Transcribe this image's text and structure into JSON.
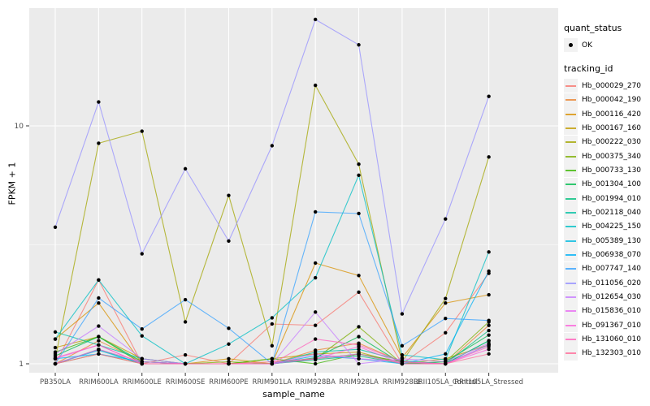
{
  "figure": {
    "y_axis_title": "FPKM + 1",
    "x_axis_title": "sample_name",
    "legend": {
      "quant_status_title": "quant_status",
      "quant_status_items": [
        {
          "label": "OK"
        }
      ],
      "tracking_id_title": "tracking_id"
    }
  },
  "chart_data": {
    "type": "line",
    "title": "",
    "xlabel": "sample_name",
    "ylabel": "FPKM + 1",
    "y_scale": "log10",
    "y_tick_values": [
      1,
      10
    ],
    "y_tick_labels": [
      "1",
      "10"
    ],
    "y_minor_tick_values": [
      3.162
    ],
    "ylim": [
      0.92,
      31
    ],
    "grid": true,
    "legend_position": "right",
    "panel_color": "#EBEBEB",
    "grid_color": "#FFFFFF",
    "point_color": "#000000",
    "tick_label_color": "#4D4D4D",
    "categories": [
      "PB350LA",
      "RRIM600LA",
      "RRIM600LE",
      "RRIM600SE",
      "RRIM600PE",
      "RRIM901LA",
      "RRIM928BA",
      "RRIM928LA",
      "RRIM928LE",
      "RRII105LA_Control",
      "RRII105LA_Stressed"
    ],
    "series": [
      {
        "name": "Hb_000029_270",
        "color": "#F8766D",
        "values": [
          1.0,
          2.25,
          1.0,
          1.09,
          1.0,
          1.47,
          1.45,
          2.0,
          1.0,
          1.35,
          2.4
        ]
      },
      {
        "name": "Hb_000042_190",
        "color": "#EA8331",
        "values": [
          1.0,
          1.25,
          1.02,
          1.0,
          1.0,
          1.0,
          1.14,
          1.22,
          1.02,
          1.0,
          1.45
        ]
      },
      {
        "name": "Hb_000116_420",
        "color": "#D89000",
        "values": [
          1.27,
          1.8,
          1.0,
          1.0,
          1.05,
          1.0,
          2.65,
          2.35,
          1.06,
          1.8,
          1.95
        ]
      },
      {
        "name": "Hb_000167_160",
        "color": "#C09B00",
        "values": [
          1.17,
          1.3,
          1.05,
          1.0,
          1.0,
          1.05,
          1.1,
          1.12,
          1.0,
          1.05,
          1.2
        ]
      },
      {
        "name": "Hb_000222_030",
        "color": "#A3A500",
        "values": [
          1.05,
          8.45,
          9.5,
          1.5,
          5.1,
          1.19,
          14.8,
          6.9,
          1.02,
          1.88,
          7.4
        ]
      },
      {
        "name": "Hb_000375_340",
        "color": "#7CAE00",
        "values": [
          1.0,
          1.1,
          1.0,
          1.0,
          1.02,
          1.0,
          1.05,
          1.43,
          1.0,
          1.02,
          1.5
        ]
      },
      {
        "name": "Hb_000733_130",
        "color": "#39B600",
        "values": [
          1.12,
          1.3,
          1.0,
          1.0,
          1.0,
          1.05,
          1.0,
          1.1,
          1.02,
          1.0,
          1.25
        ]
      },
      {
        "name": "Hb_001304_100",
        "color": "#00BB4E",
        "values": [
          1.08,
          1.3,
          1.02,
          1.0,
          1.0,
          1.0,
          1.06,
          1.3,
          1.0,
          1.02,
          1.32
        ]
      },
      {
        "name": "Hb_001994_010",
        "color": "#00BF7D",
        "values": [
          1.0,
          1.15,
          1.0,
          1.0,
          1.0,
          1.0,
          1.04,
          1.08,
          1.0,
          1.0,
          1.38
        ]
      },
      {
        "name": "Hb_002118_040",
        "color": "#00C1A3",
        "values": [
          1.36,
          1.2,
          1.05,
          1.0,
          1.0,
          1.0,
          1.12,
          1.15,
          1.03,
          1.0,
          1.25
        ]
      },
      {
        "name": "Hb_004225_150",
        "color": "#00BFC4",
        "values": [
          1.27,
          2.25,
          1.31,
          1.0,
          1.21,
          1.56,
          2.3,
          6.2,
          1.09,
          1.04,
          2.95
        ]
      },
      {
        "name": "Hb_005389_130",
        "color": "#00BAE0",
        "values": [
          1.0,
          1.14,
          1.0,
          1.0,
          1.0,
          1.0,
          1.05,
          1.1,
          1.0,
          1.0,
          1.2
        ]
      },
      {
        "name": "Hb_006938_070",
        "color": "#00B0F6",
        "values": [
          1.05,
          1.1,
          1.02,
          1.0,
          1.0,
          1.0,
          1.08,
          1.05,
          1.0,
          1.1,
          2.45
        ]
      },
      {
        "name": "Hb_007747_140",
        "color": "#35A2FF",
        "values": [
          1.0,
          1.89,
          1.4,
          1.86,
          1.41,
          1.0,
          4.35,
          4.28,
          1.19,
          1.55,
          1.52
        ]
      },
      {
        "name": "Hb_011056_020",
        "color": "#9590FF",
        "values": [
          3.75,
          12.6,
          2.9,
          6.6,
          3.28,
          8.25,
          28.0,
          21.9,
          1.62,
          4.06,
          13.3
        ]
      },
      {
        "name": "Hb_012654_030",
        "color": "#C77CFF",
        "values": [
          1.1,
          1.44,
          1.05,
          1.0,
          1.0,
          1.0,
          1.65,
          1.0,
          1.05,
          1.02,
          1.22
        ]
      },
      {
        "name": "Hb_015836_010",
        "color": "#E76BF3",
        "values": [
          1.05,
          1.2,
          1.0,
          1.0,
          1.0,
          1.0,
          1.1,
          1.05,
          1.02,
          1.0,
          1.2
        ]
      },
      {
        "name": "Hb_091367_010",
        "color": "#FA62DB",
        "values": [
          1.0,
          1.15,
          1.02,
          1.0,
          1.0,
          1.0,
          1.05,
          1.18,
          1.0,
          1.0,
          1.15
        ]
      },
      {
        "name": "Hb_131060_010",
        "color": "#FF62BC",
        "values": [
          1.06,
          1.2,
          1.0,
          1.0,
          1.0,
          1.0,
          1.27,
          1.2,
          1.02,
          1.0,
          1.18
        ]
      },
      {
        "name": "Hb_132303_010",
        "color": "#FF6A98",
        "values": [
          1.0,
          1.1,
          1.0,
          1.0,
          1.0,
          1.02,
          1.05,
          1.1,
          1.0,
          1.0,
          1.1
        ]
      }
    ]
  }
}
